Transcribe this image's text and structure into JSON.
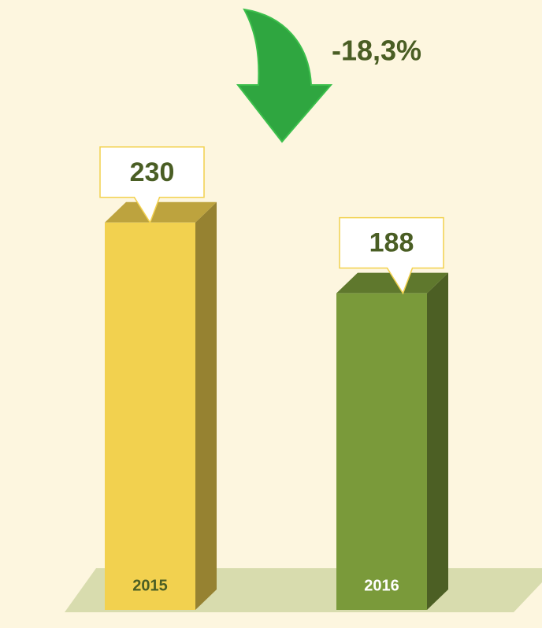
{
  "chart_data": {
    "type": "bar",
    "categories": [
      "2015",
      "2016"
    ],
    "values": [
      230,
      188
    ],
    "colors": [
      "#f2d14f",
      "#7a9a3a"
    ],
    "annotation": "-18,3%"
  }
}
